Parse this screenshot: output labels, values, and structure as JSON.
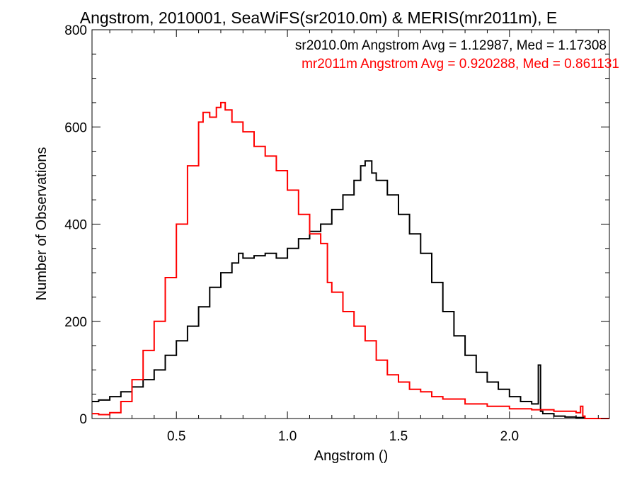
{
  "chart_data": {
    "type": "line",
    "title": "Angstrom, 2010001, SeaWiFS(sr2010.0m) & MERIS(mr2011m), E",
    "xlabel": "Angstrom ()",
    "ylabel": "Number of Observations",
    "xlim": [
      0.12,
      2.45
    ],
    "ylim": [
      0,
      800
    ],
    "xticks": [
      0.5,
      1.0,
      1.5,
      2.0
    ],
    "xtick_labels": [
      "0.5",
      "1.0",
      "1.5",
      "2.0"
    ],
    "yticks": [
      0,
      200,
      400,
      600,
      800
    ],
    "ytick_labels": [
      "0",
      "200",
      "400",
      "600",
      "800"
    ],
    "grid": false,
    "legend_position": "top-right",
    "annotations": [
      {
        "text": "sr2010.0m Angstrom Avg = 1.12987, Med = 1.17308",
        "color": "#000000"
      },
      {
        "text": "mr2011m Angstrom Avg = 0.920288, Med = 0.861131",
        "color": "#ff0000"
      }
    ],
    "series": [
      {
        "name": "sr2010.0m",
        "color": "#000000",
        "x": [
          0.12,
          0.15,
          0.2,
          0.25,
          0.3,
          0.35,
          0.4,
          0.45,
          0.5,
          0.55,
          0.6,
          0.65,
          0.7,
          0.75,
          0.78,
          0.8,
          0.85,
          0.9,
          0.95,
          1.0,
          1.05,
          1.1,
          1.15,
          1.2,
          1.25,
          1.3,
          1.33,
          1.35,
          1.38,
          1.4,
          1.45,
          1.5,
          1.55,
          1.6,
          1.65,
          1.7,
          1.75,
          1.8,
          1.85,
          1.9,
          1.95,
          2.0,
          2.05,
          2.1,
          2.13,
          2.14,
          2.15,
          2.2,
          2.25,
          2.3,
          2.34
        ],
        "y": [
          35,
          38,
          45,
          55,
          65,
          80,
          100,
          130,
          160,
          190,
          230,
          270,
          300,
          320,
          340,
          330,
          335,
          340,
          330,
          350,
          370,
          385,
          400,
          430,
          460,
          490,
          520,
          530,
          505,
          490,
          460,
          420,
          380,
          340,
          280,
          220,
          170,
          130,
          95,
          75,
          60,
          45,
          35,
          30,
          110,
          15,
          10,
          5,
          3,
          2,
          0
        ]
      },
      {
        "name": "mr2011m",
        "color": "#ff0000",
        "x": [
          0.12,
          0.15,
          0.2,
          0.25,
          0.3,
          0.35,
          0.4,
          0.45,
          0.5,
          0.55,
          0.6,
          0.62,
          0.65,
          0.68,
          0.7,
          0.72,
          0.75,
          0.8,
          0.85,
          0.9,
          0.95,
          1.0,
          1.05,
          1.1,
          1.15,
          1.18,
          1.2,
          1.25,
          1.3,
          1.35,
          1.4,
          1.45,
          1.5,
          1.55,
          1.6,
          1.65,
          1.7,
          1.8,
          1.9,
          2.0,
          2.1,
          2.2,
          2.3,
          2.32,
          2.33,
          2.34
        ],
        "y": [
          10,
          8,
          12,
          35,
          80,
          140,
          200,
          290,
          400,
          520,
          610,
          630,
          620,
          640,
          650,
          635,
          610,
          590,
          560,
          540,
          510,
          470,
          420,
          380,
          360,
          280,
          260,
          220,
          190,
          160,
          120,
          90,
          75,
          60,
          55,
          45,
          40,
          30,
          25,
          20,
          18,
          15,
          12,
          25,
          5,
          0
        ]
      }
    ]
  }
}
